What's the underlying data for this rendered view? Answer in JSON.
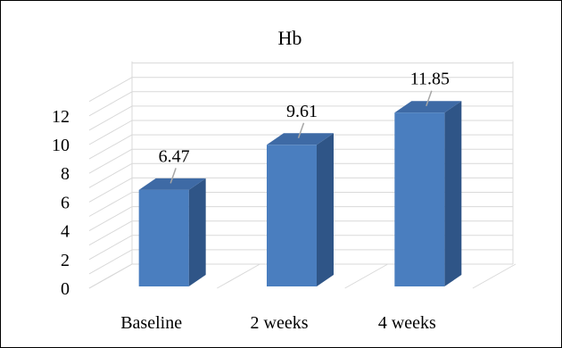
{
  "chart_data": {
    "type": "bar",
    "title": "Hb",
    "categories": [
      "Baseline",
      "2 weeks",
      "4 weeks"
    ],
    "values": [
      6.47,
      9.61,
      11.85
    ],
    "data_labels": [
      "6.47",
      "9.61",
      "11.85"
    ],
    "ylim": [
      0,
      12
    ],
    "yticks": [
      "0",
      "2",
      "4",
      "6",
      "8",
      "10",
      "12"
    ],
    "xlabel": "",
    "ylabel": "",
    "grid": true,
    "style": "3d-column",
    "colors": {
      "front": "#4a7ebf",
      "side": "#2f5587",
      "top": "#3e6aa5",
      "grid": "#d9d9d9"
    }
  }
}
